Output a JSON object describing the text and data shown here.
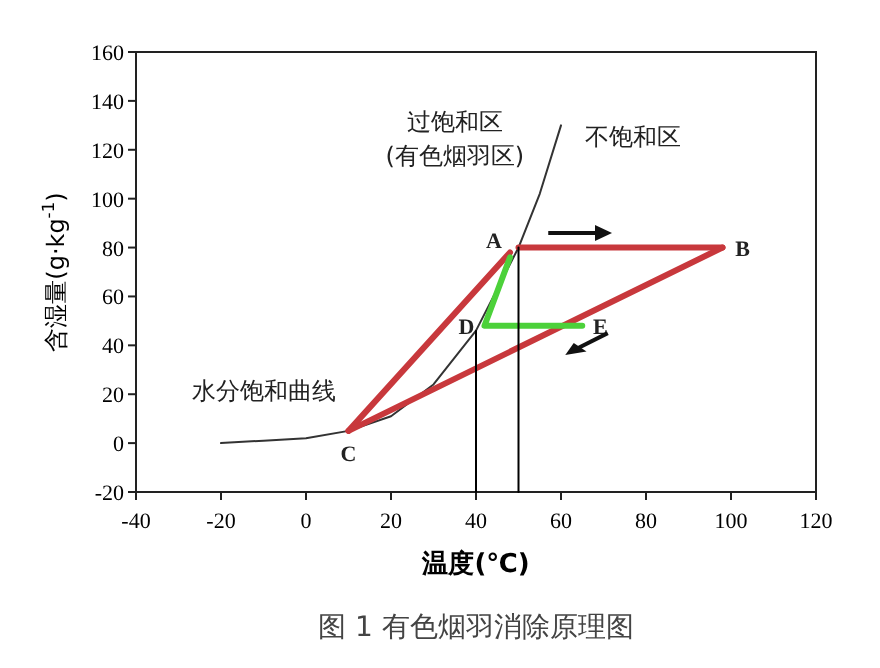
{
  "chart_data": {
    "type": "line",
    "title": "图 1  有色烟羽消除原理图",
    "xlabel": "温度(℃)",
    "ylabel": "含湿量(g·kg$^{-1}$)",
    "xlim": [
      -40,
      120
    ],
    "ylim": [
      -20,
      160
    ],
    "xticks": [
      -40,
      -20,
      0,
      20,
      40,
      60,
      80,
      100,
      120
    ],
    "yticks": [
      -20,
      0,
      20,
      40,
      60,
      80,
      100,
      120,
      140,
      160
    ],
    "grid": false,
    "marker": "none",
    "line_style": "solid",
    "series": [
      {
        "color": "#333333",
        "x": [
          -20,
          -10,
          0,
          10,
          20,
          30,
          40,
          50,
          55,
          60
        ],
        "values": [
          0,
          1,
          2,
          5,
          11,
          24,
          46,
          80,
          102,
          130
        ]
      },
      {
        "color": "#c8383c",
        "x": [
          10,
          48
        ],
        "values": [
          5,
          78
        ]
      },
      {
        "color": "#c8383c",
        "x": [
          50,
          98
        ],
        "values": [
          80,
          80
        ]
      },
      {
        "color": "#c8383c",
        "x": [
          10,
          98
        ],
        "values": [
          5,
          80
        ]
      },
      {
        "color": "#4cd13a",
        "x": [
          48,
          42,
          65
        ],
        "values": [
          76,
          48,
          48
        ]
      },
      {
        "color": "#000000",
        "x": [
          40,
          40
        ],
        "values": [
          -20,
          46
        ]
      },
      {
        "color": "#000000",
        "x": [
          50,
          50
        ],
        "values": [
          -20,
          80
        ]
      }
    ],
    "annotations": [
      {
        "text": "A",
        "x": 48,
        "y": 78
      },
      {
        "text": "B",
        "x": 98,
        "y": 80
      },
      {
        "text": "C",
        "x": 10,
        "y": 5
      },
      {
        "text": "D",
        "x": 42,
        "y": 48
      },
      {
        "text": "E",
        "x": 65,
        "y": 48
      },
      "过饱和区",
      "(有色烟羽区)",
      "不饱和区",
      "水分饱和曲线"
    ]
  }
}
